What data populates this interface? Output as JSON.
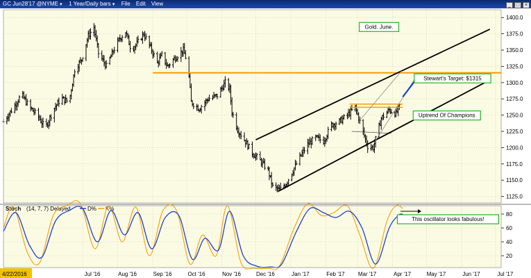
{
  "window": {
    "symbol": "GC Jun28'17 @NYME",
    "timeframe": "1 Year/Daily bars",
    "menu": [
      "File",
      "Edit",
      "View"
    ],
    "controls": [
      "_",
      "□",
      "×"
    ]
  },
  "colors": {
    "plot_bg": "#fbfbe4",
    "outer_bg": "#ffffff",
    "price_bars": "#000000",
    "resistance": "#f5a000",
    "blue_arrow": "#1a3fe0",
    "label_border": "#22b822",
    "stoch_d": "#1f3fcf",
    "stoch_k": "#f5a000",
    "date_highlight": "#f2c200"
  },
  "chart_data": [
    {
      "type": "ohlc",
      "title": "",
      "x_ticks": [
        "Jul '16",
        "Aug '16",
        "Sep '16",
        "Oct '16",
        "Nov '16",
        "Dec '16",
        "Jan '17",
        "Feb '17",
        "Mar '17",
        "Apr '17",
        "May '17",
        "Jun '17",
        "Jul '17"
      ],
      "start_date_label": "4/22/2016",
      "y_ticks": [
        1125,
        1150,
        1175,
        1200,
        1225,
        1250,
        1275,
        1300,
        1325,
        1350,
        1375,
        1400
      ],
      "ylim": [
        1115,
        1412
      ],
      "price_path": [
        [
          "2016-04-22",
          1240
        ],
        [
          "2016-05-01",
          1262
        ],
        [
          "2016-05-08",
          1282
        ],
        [
          "2016-05-15",
          1262
        ],
        [
          "2016-05-22",
          1250
        ],
        [
          "2016-05-29",
          1230
        ],
        [
          "2016-06-05",
          1258
        ],
        [
          "2016-06-12",
          1276
        ],
        [
          "2016-06-19",
          1270
        ],
        [
          "2016-06-24",
          1320
        ],
        [
          "2016-06-30",
          1335
        ],
        [
          "2016-07-06",
          1372
        ],
        [
          "2016-07-11",
          1385
        ],
        [
          "2016-07-15",
          1345
        ],
        [
          "2016-07-22",
          1325
        ],
        [
          "2016-07-29",
          1352
        ],
        [
          "2016-08-03",
          1368
        ],
        [
          "2016-08-08",
          1378
        ],
        [
          "2016-08-13",
          1350
        ],
        [
          "2016-08-18",
          1360
        ],
        [
          "2016-08-24",
          1375
        ],
        [
          "2016-08-31",
          1350
        ],
        [
          "2016-09-05",
          1330
        ],
        [
          "2016-09-09",
          1342
        ],
        [
          "2016-09-14",
          1325
        ],
        [
          "2016-09-19",
          1335
        ],
        [
          "2016-09-25",
          1345
        ],
        [
          "2016-09-28",
          1350
        ],
        [
          "2016-10-02",
          1328
        ],
        [
          "2016-10-05",
          1270
        ],
        [
          "2016-10-12",
          1260
        ],
        [
          "2016-10-20",
          1275
        ],
        [
          "2016-10-28",
          1280
        ],
        [
          "2016-11-04",
          1300
        ],
        [
          "2016-11-08",
          1290
        ],
        [
          "2016-11-10",
          1255
        ],
        [
          "2016-11-15",
          1228
        ],
        [
          "2016-11-21",
          1212
        ],
        [
          "2016-11-28",
          1192
        ],
        [
          "2016-12-05",
          1180
        ],
        [
          "2016-12-12",
          1165
        ],
        [
          "2016-12-16",
          1140
        ],
        [
          "2016-12-22",
          1135
        ],
        [
          "2016-12-28",
          1145
        ],
        [
          "2017-01-03",
          1165
        ],
        [
          "2017-01-09",
          1185
        ],
        [
          "2017-01-16",
          1205
        ],
        [
          "2017-01-23",
          1215
        ],
        [
          "2017-01-30",
          1210
        ],
        [
          "2017-02-06",
          1235
        ],
        [
          "2017-02-13",
          1240
        ],
        [
          "2017-02-20",
          1250
        ],
        [
          "2017-02-27",
          1262
        ],
        [
          "2017-03-03",
          1240
        ],
        [
          "2017-03-10",
          1202
        ],
        [
          "2017-03-15",
          1200
        ],
        [
          "2017-03-22",
          1245
        ],
        [
          "2017-03-29",
          1258
        ],
        [
          "2017-04-04",
          1252
        ],
        [
          "2017-04-07",
          1262
        ]
      ],
      "resistance": {
        "value": 1315,
        "from": "2016-09-01",
        "to": "2017-07-06"
      },
      "resistance_short": [
        1262,
        1267
      ],
      "resistance_short_range": [
        "2017-02-22",
        "2017-04-10"
      ],
      "support_short": [
        1225,
        1222
      ],
      "support_short_range": [
        "2017-02-24",
        "2017-03-31"
      ],
      "upper_channel": [
        [
          "2016-12-01",
          1212
        ],
        [
          "2017-06-26",
          1382
        ]
      ],
      "lower_channel": [
        [
          "2016-12-21",
          1133
        ],
        [
          "2017-06-26",
          1304
        ]
      ],
      "inner_channel_1": [
        [
          "2017-03-16",
          1208
        ],
        [
          "2017-04-24",
          1315
        ]
      ],
      "inner_channel_2": [
        [
          "2017-03-02",
          1240
        ],
        [
          "2017-04-09",
          1318
        ]
      ],
      "target_arrow": [
        [
          "2017-04-10",
          1278
        ],
        [
          "2017-04-24",
          1310
        ]
      ],
      "annotations": [
        {
          "text": "Gold. June.",
          "date": "2017-03-20",
          "y": 1386
        },
        {
          "text": "Stewart's Target: $1315",
          "date": "2017-05-24",
          "y": 1307
        },
        {
          "text": "Uptrend Of Champions",
          "date": "2017-05-19",
          "y": 1250
        }
      ]
    },
    {
      "type": "line",
      "title": "Stoch",
      "params": "(14, 7, 7) Delayed",
      "legend": [
        "D%",
        "K%"
      ],
      "ylim": [
        0,
        100
      ],
      "y_ticks": [
        20,
        40,
        60,
        80
      ],
      "series": [
        {
          "name": "D%",
          "values": [
            [
              "2016-04-22",
              55
            ],
            [
              "2016-05-03",
              82
            ],
            [
              "2016-05-15",
              35
            ],
            [
              "2016-05-26",
              18
            ],
            [
              "2016-06-07",
              70
            ],
            [
              "2016-06-19",
              85
            ],
            [
              "2016-07-01",
              88
            ],
            [
              "2016-07-14",
              40
            ],
            [
              "2016-07-26",
              85
            ],
            [
              "2016-08-07",
              50
            ],
            [
              "2016-08-19",
              82
            ],
            [
              "2016-08-31",
              30
            ],
            [
              "2016-09-12",
              75
            ],
            [
              "2016-09-24",
              78
            ],
            [
              "2016-10-06",
              15
            ],
            [
              "2016-10-17",
              45
            ],
            [
              "2016-10-29",
              28
            ],
            [
              "2016-11-08",
              84
            ],
            [
              "2016-11-20",
              20
            ],
            [
              "2016-12-02",
              5
            ],
            [
              "2016-12-14",
              4
            ],
            [
              "2016-12-24",
              8
            ],
            [
              "2017-01-06",
              55
            ],
            [
              "2017-01-18",
              88
            ],
            [
              "2017-01-30",
              82
            ],
            [
              "2017-02-10",
              75
            ],
            [
              "2017-02-22",
              84
            ],
            [
              "2017-03-05",
              60
            ],
            [
              "2017-03-17",
              8
            ],
            [
              "2017-03-29",
              60
            ],
            [
              "2017-04-06",
              78
            ],
            [
              "2017-04-10",
              80
            ]
          ]
        },
        {
          "name": "K%",
          "values": [
            [
              "2016-04-22",
              60
            ],
            [
              "2016-05-01",
              90
            ],
            [
              "2016-05-13",
              25
            ],
            [
              "2016-05-24",
              10
            ],
            [
              "2016-06-05",
              78
            ],
            [
              "2016-06-17",
              92
            ],
            [
              "2016-06-29",
              95
            ],
            [
              "2016-07-12",
              30
            ],
            [
              "2016-07-24",
              92
            ],
            [
              "2016-08-05",
              40
            ],
            [
              "2016-08-17",
              90
            ],
            [
              "2016-08-29",
              20
            ],
            [
              "2016-09-10",
              85
            ],
            [
              "2016-09-22",
              85
            ],
            [
              "2016-10-04",
              8
            ],
            [
              "2016-10-15",
              50
            ],
            [
              "2016-10-27",
              20
            ],
            [
              "2016-11-06",
              92
            ],
            [
              "2016-11-18",
              10
            ],
            [
              "2016-11-30",
              2
            ],
            [
              "2016-12-12",
              2
            ],
            [
              "2016-12-22",
              5
            ],
            [
              "2017-01-04",
              60
            ],
            [
              "2017-01-16",
              95
            ],
            [
              "2017-01-28",
              78
            ],
            [
              "2017-02-08",
              82
            ],
            [
              "2017-02-20",
              92
            ],
            [
              "2017-03-03",
              50
            ],
            [
              "2017-03-15",
              2
            ],
            [
              "2017-03-27",
              70
            ],
            [
              "2017-04-04",
              92
            ],
            [
              "2017-04-10",
              88
            ]
          ]
        }
      ],
      "annotation": "This oscillator looks fabulous!"
    }
  ]
}
